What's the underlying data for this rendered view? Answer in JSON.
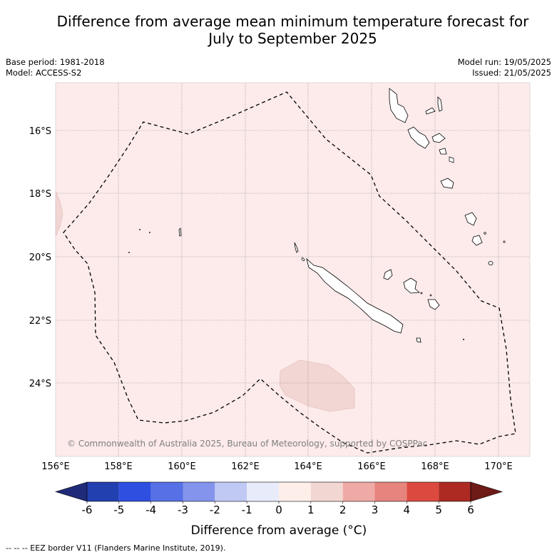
{
  "title_line1": "Difference from average mean minimum temperature forecast for",
  "title_line2": "July to September 2025",
  "base_period": "Base period: 1981-2018",
  "model": "Model: ACCESS-S2",
  "model_run": "Model run: 19/05/2025",
  "issued": "Issued: 21/05/2025",
  "copyright": "© Commonwealth of Australia 2025, Bureau of Meteorology, supported by COSPPac",
  "lat_labels": [
    "16°S",
    "18°S",
    "20°S",
    "22°S",
    "24°S"
  ],
  "lon_labels": [
    "156°E",
    "158°E",
    "160°E",
    "162°E",
    "164°E",
    "166°E",
    "168°E",
    "170°E"
  ],
  "colorbar": {
    "label": "Difference from average (°C)",
    "ticks": [
      "-6",
      "-5",
      "-4",
      "-3",
      "-2",
      "-1",
      "0",
      "1",
      "2",
      "3",
      "4",
      "5",
      "6"
    ],
    "colors": [
      "#1f2a78",
      "#2340b0",
      "#2f4fe0",
      "#5670e6",
      "#8494ec",
      "#c0c8f4",
      "#e8ecfa",
      "#fdeee9",
      "#f2d6d2",
      "#efaaa6",
      "#e6847d",
      "#dc4a3f",
      "#ac2a22",
      "#6e1a17"
    ]
  },
  "map_fill_color": "#fcebea",
  "anomaly_patch_color": "#f1d6d4",
  "footnote": "-- -- -- EEZ border V11 (Flanders Marine Institute, 2019)."
}
